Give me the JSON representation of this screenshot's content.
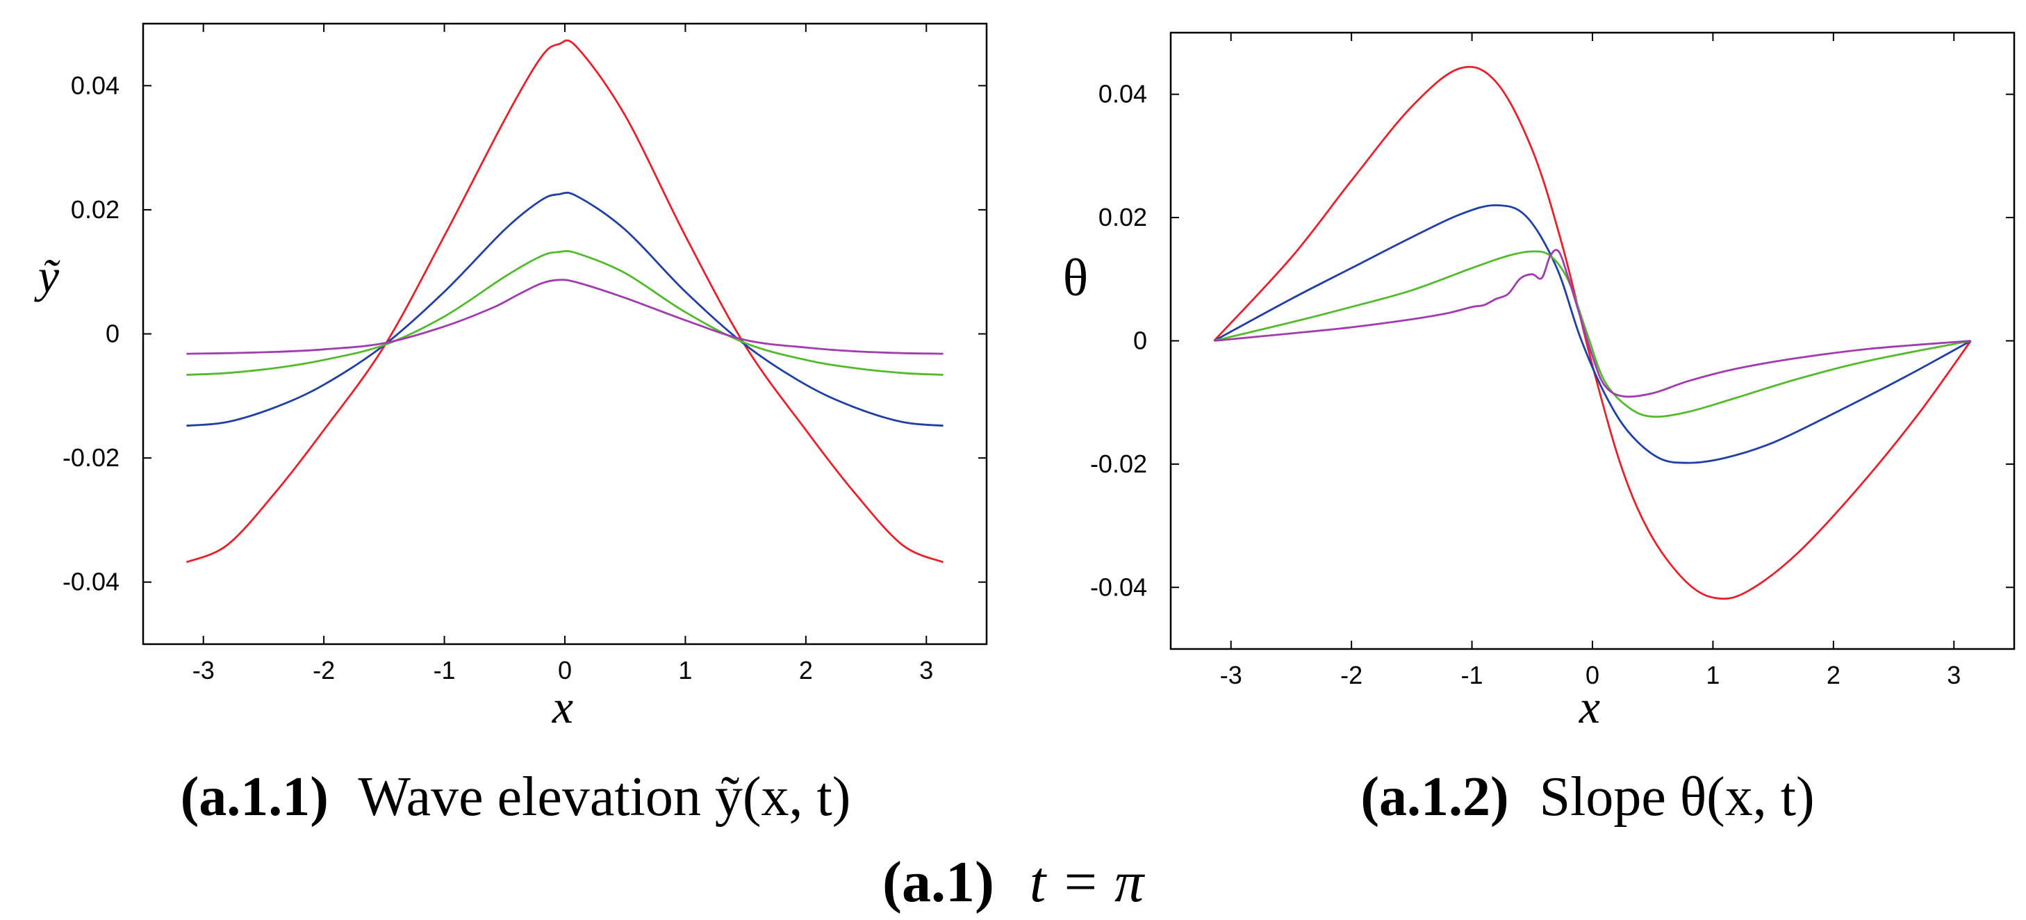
{
  "colors": {
    "red": "#e8202a",
    "blue": "#1f3fa6",
    "green": "#52bb2c",
    "purple": "#a13bb0"
  },
  "figure_caption": {
    "label": "(a.1)",
    "text": "t = π"
  },
  "chart_data": [
    {
      "type": "line",
      "caption": {
        "label": "(a.1.1)",
        "text": "Wave elevation ỹ(x, t)"
      },
      "xlabel": "x",
      "ylabel": "ỹ",
      "xlim": [
        -3.5,
        3.5
      ],
      "ylim": [
        -0.05,
        0.05
      ],
      "xticks": [
        -3,
        -2,
        -1,
        0,
        1,
        2,
        3
      ],
      "xtick_labels": [
        "-3",
        "-2",
        "-1",
        "0",
        "1",
        "2",
        "3"
      ],
      "yticks": [
        -0.04,
        -0.02,
        0,
        0.02,
        0.04
      ],
      "ytick_labels": [
        "-0.04",
        "-0.02",
        "0",
        "0.02",
        "0.04"
      ],
      "grid": false,
      "series": [
        {
          "color": "red",
          "x": [
            -3.14,
            -2.8,
            -2.4,
            -2.0,
            -1.5,
            -1.0,
            -0.5,
            -0.2,
            -0.05,
            0.1,
            0.5,
            1.0,
            1.5,
            2.0,
            2.4,
            2.8,
            3.14
          ],
          "values": [
            -0.0368,
            -0.034,
            -0.0255,
            -0.0155,
            -0.002,
            0.0158,
            0.0345,
            0.0445,
            0.0467,
            0.0462,
            0.0352,
            0.0158,
            -0.002,
            -0.0155,
            -0.0255,
            -0.034,
            -0.0368
          ]
        },
        {
          "color": "blue",
          "x": [
            -3.14,
            -2.8,
            -2.4,
            -2.0,
            -1.5,
            -1.0,
            -0.5,
            -0.2,
            -0.05,
            0.1,
            0.5,
            1.0,
            1.5,
            2.0,
            2.4,
            2.8,
            3.14
          ],
          "values": [
            -0.0148,
            -0.0142,
            -0.0118,
            -0.0082,
            -0.0018,
            0.0068,
            0.0168,
            0.0215,
            0.0225,
            0.0222,
            0.0168,
            0.0068,
            -0.0018,
            -0.0082,
            -0.0118,
            -0.0142,
            -0.0148
          ]
        },
        {
          "color": "green",
          "x": [
            -3.14,
            -2.8,
            -2.4,
            -2.0,
            -1.5,
            -1.0,
            -0.5,
            -0.2,
            -0.05,
            0.1,
            0.5,
            1.0,
            1.5,
            2.0,
            2.4,
            2.8,
            3.14
          ],
          "values": [
            -0.0066,
            -0.0063,
            -0.0055,
            -0.0042,
            -0.0018,
            0.0028,
            0.0092,
            0.0125,
            0.0132,
            0.013,
            0.0098,
            0.0035,
            -0.0015,
            -0.0042,
            -0.0055,
            -0.0063,
            -0.0066
          ]
        },
        {
          "color": "purple",
          "x": [
            -3.14,
            -2.8,
            -2.4,
            -2.0,
            -1.5,
            -1.0,
            -0.6,
            -0.4,
            -0.2,
            -0.05,
            0.1,
            0.5,
            1.0,
            1.5,
            2.0,
            2.4,
            2.8,
            3.14
          ],
          "values": [
            -0.0032,
            -0.0031,
            -0.0029,
            -0.0025,
            -0.0015,
            0.0012,
            0.0042,
            0.0062,
            0.0081,
            0.0087,
            0.0083,
            0.0058,
            0.0022,
            -0.001,
            -0.0022,
            -0.0028,
            -0.0031,
            -0.0032
          ]
        }
      ]
    },
    {
      "type": "line",
      "caption": {
        "label": "(a.1.2)",
        "text": "Slope θ(x, t)"
      },
      "xlabel": "x",
      "ylabel": "θ",
      "xlim": [
        -3.5,
        3.5
      ],
      "ylim": [
        -0.05,
        0.05
      ],
      "xticks": [
        -3,
        -2,
        -1,
        0,
        1,
        2,
        3
      ],
      "xtick_labels": [
        "-3",
        "-2",
        "-1",
        "0",
        "1",
        "2",
        "3"
      ],
      "yticks": [
        -0.04,
        -0.02,
        0,
        0.02,
        0.04
      ],
      "ytick_labels": [
        "-0.04",
        "-0.02",
        "0",
        "0.02",
        "0.04"
      ],
      "grid": false,
      "series": [
        {
          "color": "red",
          "x": [
            -3.14,
            -2.5,
            -2.0,
            -1.5,
            -1.1,
            -0.8,
            -0.5,
            -0.25,
            0.0,
            0.25,
            0.5,
            0.8,
            1.05,
            1.3,
            1.7,
            2.2,
            2.7,
            3.14
          ],
          "values": [
            0.0,
            0.0135,
            0.026,
            0.038,
            0.0442,
            0.042,
            0.031,
            0.0155,
            -0.004,
            -0.021,
            -0.032,
            -0.0395,
            -0.0418,
            -0.0405,
            -0.0345,
            -0.024,
            -0.012,
            0.0
          ]
        },
        {
          "color": "blue",
          "x": [
            -3.14,
            -2.5,
            -2.0,
            -1.5,
            -1.1,
            -0.8,
            -0.55,
            -0.3,
            -0.1,
            0.1,
            0.3,
            0.55,
            0.8,
            1.1,
            1.5,
            2.0,
            2.6,
            3.14
          ],
          "values": [
            0.0,
            0.0068,
            0.0118,
            0.0168,
            0.0205,
            0.022,
            0.0202,
            0.012,
            0.0005,
            -0.0085,
            -0.0148,
            -0.019,
            -0.0198,
            -0.019,
            -0.0165,
            -0.0118,
            -0.0058,
            0.0
          ]
        },
        {
          "color": "green",
          "x": [
            -3.14,
            -2.5,
            -2.0,
            -1.5,
            -1.0,
            -0.7,
            -0.5,
            -0.35,
            -0.2,
            -0.05,
            0.1,
            0.3,
            0.5,
            0.8,
            1.2,
            1.7,
            2.3,
            3.14
          ],
          "values": [
            0.0,
            0.003,
            0.0055,
            0.0082,
            0.0118,
            0.0138,
            0.0145,
            0.0138,
            0.0098,
            0.0015,
            -0.0065,
            -0.0108,
            -0.0123,
            -0.0115,
            -0.0092,
            -0.0062,
            -0.0032,
            0.0
          ]
        },
        {
          "color": "purple",
          "x": [
            -3.14,
            -2.5,
            -2.0,
            -1.5,
            -1.2,
            -1.0,
            -0.9,
            -0.8,
            -0.7,
            -0.6,
            -0.5,
            -0.42,
            -0.35,
            -0.28,
            -0.2,
            -0.1,
            0.0,
            0.1,
            0.25,
            0.5,
            0.8,
            1.2,
            1.7,
            2.3,
            3.14
          ],
          "values": [
            0.0,
            0.0012,
            0.0022,
            0.0035,
            0.0045,
            0.0055,
            0.0058,
            0.0068,
            0.0076,
            0.0101,
            0.0108,
            0.0102,
            0.0138,
            0.0145,
            0.0102,
            0.0038,
            -0.0025,
            -0.0072,
            -0.009,
            -0.0085,
            -0.0065,
            -0.0045,
            -0.0028,
            -0.0013,
            0.0
          ]
        }
      ]
    }
  ]
}
